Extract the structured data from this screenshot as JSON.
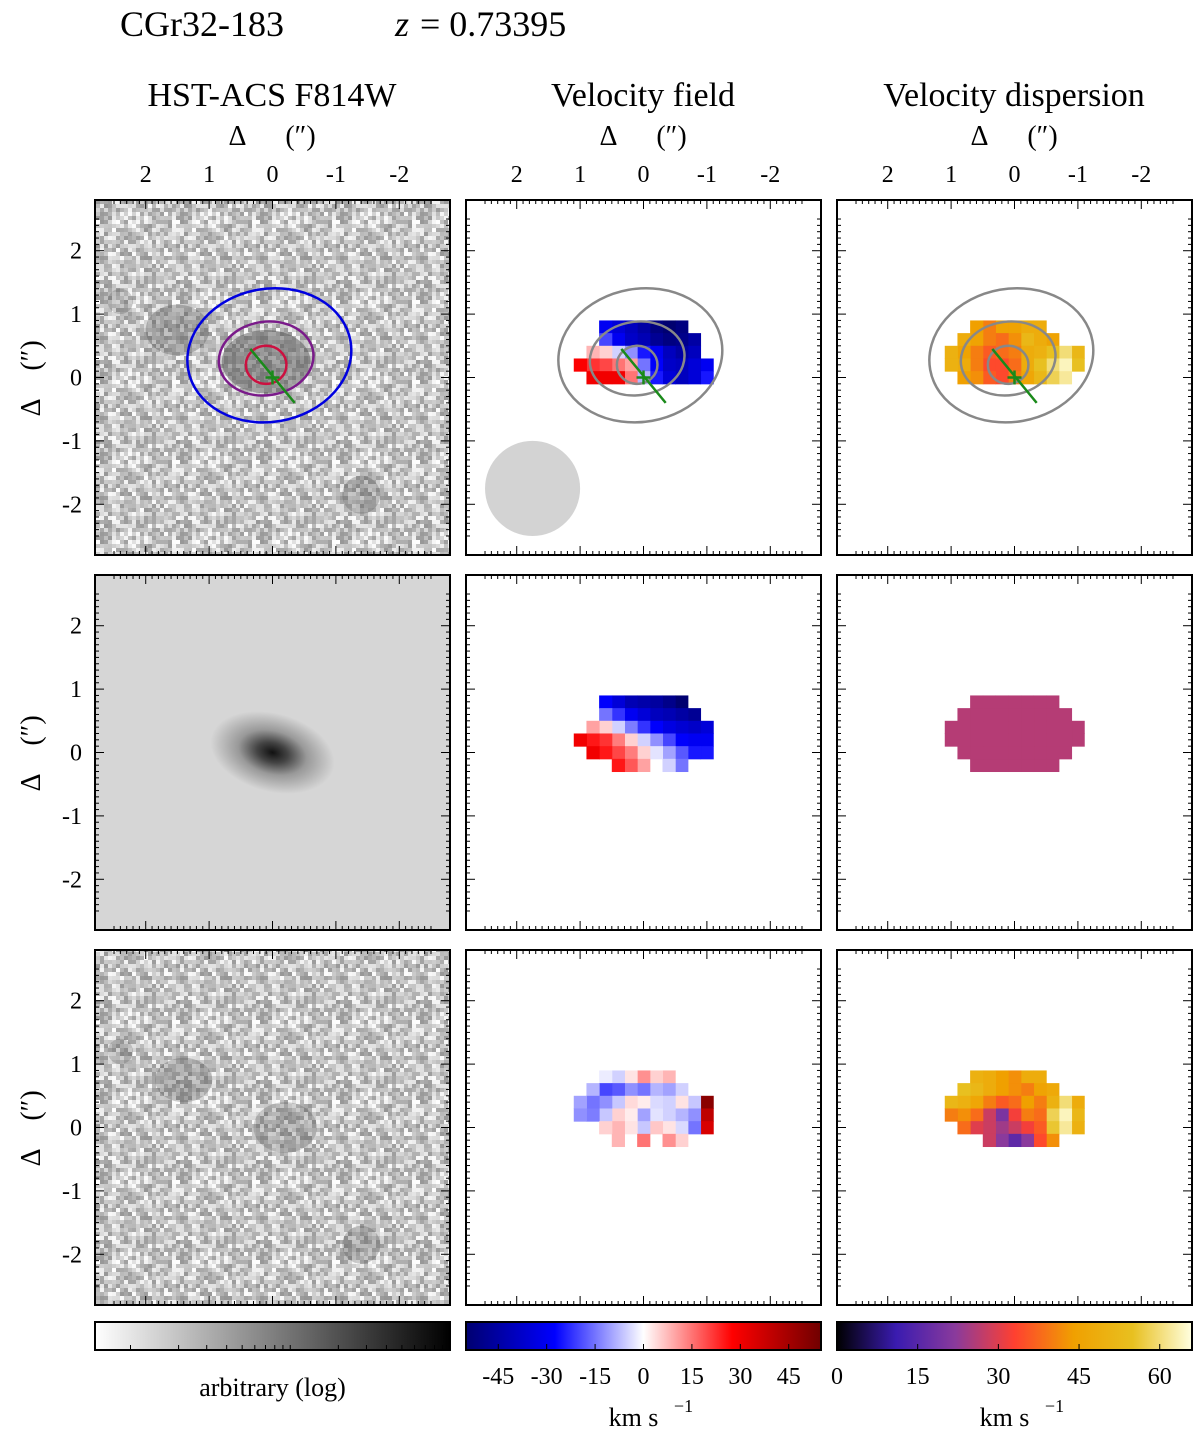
{
  "header": {
    "object_id": "CGr32-183",
    "redshift_var": "z",
    "redshift_eq": "= 0.73395"
  },
  "columns": [
    {
      "title": "HST-ACS F814W"
    },
    {
      "title": "Velocity field"
    },
    {
      "title": "Velocity dispersion"
    }
  ],
  "axes": {
    "label_delta": "Δ",
    "label_unit": "(″)",
    "x_ticks": [
      "2",
      "1",
      "0",
      "-1",
      "-2"
    ],
    "y_ticks": [
      "2",
      "1",
      "0",
      "-1",
      "-2"
    ],
    "range": [
      -2.8,
      2.8
    ]
  },
  "colorbars": [
    {
      "name": "image",
      "label": "arbitrary (log)",
      "ticks": [],
      "colors": [
        "#ffffff",
        "#000000"
      ]
    },
    {
      "name": "velocity",
      "label": "km s",
      "label_sup": "−1",
      "ticks": [
        "-45",
        "-30",
        "-15",
        "0",
        "15",
        "30",
        "45"
      ],
      "range": [
        -55,
        55
      ],
      "colors": [
        "#000070",
        "#0000ff",
        "#ffffff",
        "#ff0000",
        "#700000"
      ]
    },
    {
      "name": "dispersion",
      "label": "km s",
      "label_sup": "−1",
      "ticks": [
        "0",
        "15",
        "30",
        "45",
        "60"
      ],
      "range": [
        0,
        66
      ],
      "colors": [
        "#000000",
        "#3a1bb0",
        "#8a3a9c",
        "#ff4030",
        "#f0a000",
        "#e8c020",
        "#ffffe0"
      ]
    }
  ],
  "chart_data": [
    {
      "type": "heatmap",
      "title": "Velocity field",
      "rows": [
        "observed",
        "model",
        "residual"
      ],
      "unit": "km s−1",
      "pixel_size_arcsec": 0.2,
      "observed_pixels": [
        [
          -0.6,
          0.8,
          -52
        ],
        [
          -0.4,
          0.8,
          -55
        ],
        [
          -0.2,
          0.8,
          -52
        ],
        [
          0.0,
          0.8,
          -45
        ],
        [
          0.2,
          0.8,
          -40
        ],
        [
          0.4,
          0.8,
          -35
        ],
        [
          0.6,
          0.8,
          -30
        ],
        [
          -0.8,
          0.6,
          -45
        ],
        [
          -0.6,
          0.6,
          -50
        ],
        [
          -0.4,
          0.6,
          -52
        ],
        [
          -0.2,
          0.6,
          -48
        ],
        [
          0.0,
          0.6,
          -42
        ],
        [
          0.2,
          0.6,
          -38
        ],
        [
          0.4,
          0.6,
          -30
        ],
        [
          0.6,
          0.6,
          -20
        ],
        [
          -0.8,
          0.4,
          -40
        ],
        [
          -0.6,
          0.4,
          -45
        ],
        [
          -0.4,
          0.4,
          -40
        ],
        [
          -0.2,
          0.4,
          -30
        ],
        [
          0.0,
          0.4,
          -25
        ],
        [
          0.2,
          0.4,
          -12
        ],
        [
          0.4,
          0.4,
          -5
        ],
        [
          0.6,
          0.4,
          5
        ],
        [
          0.8,
          0.4,
          8
        ],
        [
          -1.0,
          0.2,
          -30
        ],
        [
          -0.8,
          0.2,
          -35
        ],
        [
          -0.6,
          0.2,
          -40
        ],
        [
          -0.4,
          0.2,
          -38
        ],
        [
          -0.2,
          0.2,
          -28
        ],
        [
          0.0,
          0.2,
          -15
        ],
        [
          0.2,
          0.2,
          10
        ],
        [
          0.4,
          0.2,
          15
        ],
        [
          0.6,
          0.2,
          20
        ],
        [
          0.8,
          0.2,
          22
        ],
        [
          1.0,
          0.2,
          28
        ],
        [
          -1.0,
          0.0,
          -25
        ],
        [
          -0.8,
          0.0,
          -35
        ],
        [
          -0.6,
          0.0,
          -40
        ],
        [
          -0.4,
          0.0,
          -35
        ],
        [
          -0.2,
          0.0,
          -25
        ],
        [
          0.0,
          0.0,
          -8
        ],
        [
          0.2,
          0.0,
          15
        ],
        [
          0.4,
          0.0,
          30
        ],
        [
          0.6,
          0.0,
          30
        ],
        [
          0.8,
          0.0,
          30
        ]
      ],
      "model_pixels": [
        [
          -0.6,
          0.8,
          -55
        ],
        [
          -0.4,
          0.8,
          -50
        ],
        [
          -0.2,
          0.8,
          -46
        ],
        [
          0.0,
          0.8,
          -44
        ],
        [
          0.2,
          0.8,
          -42
        ],
        [
          0.4,
          0.8,
          -35
        ],
        [
          0.6,
          0.8,
          -28
        ],
        [
          -0.8,
          0.6,
          -48
        ],
        [
          -0.6,
          0.6,
          -45
        ],
        [
          -0.4,
          0.6,
          -42
        ],
        [
          -0.2,
          0.6,
          -40
        ],
        [
          0.0,
          0.6,
          -35
        ],
        [
          0.2,
          0.6,
          -30
        ],
        [
          0.4,
          0.6,
          -22
        ],
        [
          0.6,
          0.6,
          -15
        ],
        [
          -1.0,
          0.4,
          -35
        ],
        [
          -0.8,
          0.4,
          -38
        ],
        [
          -0.6,
          0.4,
          -36
        ],
        [
          -0.4,
          0.4,
          -33
        ],
        [
          -0.2,
          0.4,
          -28
        ],
        [
          0.0,
          0.4,
          -22
        ],
        [
          0.2,
          0.4,
          -14
        ],
        [
          0.4,
          0.4,
          -5
        ],
        [
          0.6,
          0.4,
          5
        ],
        [
          0.8,
          0.4,
          10
        ],
        [
          -1.0,
          0.2,
          -30
        ],
        [
          -0.8,
          0.2,
          -30
        ],
        [
          -0.6,
          0.2,
          -28
        ],
        [
          -0.4,
          0.2,
          -20
        ],
        [
          -0.2,
          0.2,
          -12
        ],
        [
          0.0,
          0.2,
          -5
        ],
        [
          0.2,
          0.2,
          5
        ],
        [
          0.4,
          0.2,
          14
        ],
        [
          0.6,
          0.2,
          22
        ],
        [
          0.8,
          0.2,
          25
        ],
        [
          1.0,
          0.2,
          30
        ],
        [
          -1.0,
          0.0,
          -25
        ],
        [
          -0.8,
          0.0,
          -25
        ],
        [
          -0.6,
          0.0,
          -18
        ],
        [
          -0.4,
          0.0,
          -10
        ],
        [
          -0.2,
          0.0,
          -3
        ],
        [
          0.0,
          0.0,
          5
        ],
        [
          0.2,
          0.0,
          14
        ],
        [
          0.4,
          0.0,
          20
        ],
        [
          0.6,
          0.0,
          25
        ],
        [
          0.8,
          0.0,
          30
        ],
        [
          -0.6,
          -0.2,
          -15
        ],
        [
          -0.4,
          -0.2,
          -5
        ],
        [
          0.0,
          -0.2,
          10
        ],
        [
          0.2,
          -0.2,
          18
        ],
        [
          0.4,
          -0.2,
          25
        ]
      ],
      "residual_pixels": [
        [
          -0.4,
          0.8,
          8
        ],
        [
          -0.2,
          0.8,
          5
        ],
        [
          0.0,
          0.8,
          12
        ],
        [
          0.2,
          0.8,
          3
        ],
        [
          0.4,
          0.8,
          -5
        ],
        [
          0.6,
          0.8,
          -2
        ],
        [
          -0.6,
          0.6,
          -5
        ],
        [
          -0.4,
          0.6,
          -10
        ],
        [
          -0.2,
          0.6,
          -8
        ],
        [
          0.0,
          0.6,
          -15
        ],
        [
          0.2,
          0.6,
          -12
        ],
        [
          0.4,
          0.6,
          -18
        ],
        [
          0.6,
          0.6,
          -20
        ],
        [
          0.8,
          0.6,
          -8
        ],
        [
          -1.0,
          0.4,
          50
        ],
        [
          -0.8,
          0.4,
          -6
        ],
        [
          -0.6,
          0.4,
          3
        ],
        [
          -0.4,
          0.4,
          -5
        ],
        [
          -0.2,
          0.4,
          -4
        ],
        [
          0.0,
          0.4,
          2
        ],
        [
          0.2,
          0.4,
          4
        ],
        [
          0.4,
          0.4,
          -6
        ],
        [
          0.6,
          0.4,
          -12
        ],
        [
          0.8,
          0.4,
          -15
        ],
        [
          1.0,
          0.4,
          -10
        ],
        [
          -1.0,
          0.2,
          40
        ],
        [
          -0.8,
          0.2,
          -12
        ],
        [
          -0.6,
          0.2,
          -8
        ],
        [
          -0.4,
          0.2,
          -5
        ],
        [
          -0.2,
          0.2,
          -3
        ],
        [
          0.0,
          0.2,
          -10
        ],
        [
          0.2,
          0.2,
          2
        ],
        [
          0.4,
          0.2,
          5
        ],
        [
          0.6,
          0.2,
          -6
        ],
        [
          0.8,
          0.2,
          -14
        ],
        [
          1.0,
          0.2,
          -12
        ],
        [
          -1.0,
          0.0,
          35
        ],
        [
          -0.8,
          0.0,
          -15
        ],
        [
          -0.6,
          0.0,
          -4
        ],
        [
          -0.4,
          0.0,
          3
        ],
        [
          -0.2,
          0.0,
          6
        ],
        [
          0.0,
          0.0,
          -6
        ],
        [
          0.2,
          0.0,
          3
        ],
        [
          0.4,
          0.0,
          8
        ],
        [
          0.6,
          0.0,
          5
        ],
        [
          -0.6,
          -0.2,
          5
        ],
        [
          -0.4,
          -0.2,
          12
        ],
        [
          0.0,
          -0.2,
          15
        ],
        [
          0.4,
          -0.2,
          8
        ]
      ]
    },
    {
      "type": "heatmap",
      "title": "Velocity dispersion",
      "rows": [
        "observed",
        "model",
        "residual"
      ],
      "unit": "km s−1",
      "pixel_size_arcsec": 0.2,
      "observed_pixels": [
        [
          -0.4,
          0.8,
          48
        ],
        [
          -0.2,
          0.8,
          48
        ],
        [
          0.0,
          0.8,
          45
        ],
        [
          0.2,
          0.8,
          45
        ],
        [
          0.4,
          0.8,
          40
        ],
        [
          0.6,
          0.8,
          44
        ],
        [
          -0.6,
          0.6,
          45
        ],
        [
          -0.4,
          0.6,
          48
        ],
        [
          -0.2,
          0.6,
          52
        ],
        [
          0.0,
          0.6,
          42
        ],
        [
          0.2,
          0.6,
          38
        ],
        [
          0.4,
          0.6,
          40
        ],
        [
          0.6,
          0.6,
          45
        ],
        [
          0.8,
          0.6,
          48
        ],
        [
          -1.0,
          0.4,
          52
        ],
        [
          -0.8,
          0.4,
          60
        ],
        [
          -0.6,
          0.4,
          55
        ],
        [
          -0.4,
          0.4,
          50
        ],
        [
          -0.2,
          0.4,
          48
        ],
        [
          0.0,
          0.4,
          40
        ],
        [
          0.2,
          0.4,
          38
        ],
        [
          0.4,
          0.4,
          36
        ],
        [
          0.6,
          0.4,
          40
        ],
        [
          0.8,
          0.4,
          45
        ],
        [
          1.0,
          0.4,
          50
        ],
        [
          -1.0,
          0.2,
          55
        ],
        [
          -0.8,
          0.2,
          64
        ],
        [
          -0.6,
          0.2,
          60
        ],
        [
          -0.4,
          0.2,
          55
        ],
        [
          -0.2,
          0.2,
          48
        ],
        [
          0.0,
          0.2,
          38
        ],
        [
          0.2,
          0.2,
          34
        ],
        [
          0.4,
          0.2,
          34
        ],
        [
          0.6,
          0.2,
          40
        ],
        [
          0.8,
          0.2,
          48
        ],
        [
          1.0,
          0.2,
          50
        ],
        [
          -0.8,
          0.0,
          62
        ],
        [
          -0.6,
          0.0,
          58
        ],
        [
          -0.4,
          0.0,
          52
        ],
        [
          -0.2,
          0.0,
          46
        ],
        [
          0.0,
          0.0,
          40
        ],
        [
          0.2,
          0.0,
          34
        ],
        [
          0.4,
          0.0,
          36
        ],
        [
          0.6,
          0.0,
          42
        ],
        [
          0.8,
          0.0,
          44
        ]
      ],
      "model_uniform_value": 26,
      "residual_pixels": [
        [
          -0.4,
          0.8,
          48
        ],
        [
          -0.2,
          0.8,
          48
        ],
        [
          0.0,
          0.8,
          42
        ],
        [
          0.2,
          0.8,
          44
        ],
        [
          0.4,
          0.8,
          48
        ],
        [
          0.6,
          0.8,
          50
        ],
        [
          -0.6,
          0.6,
          47
        ],
        [
          -0.4,
          0.6,
          45
        ],
        [
          -0.2,
          0.6,
          40
        ],
        [
          0.0,
          0.6,
          42
        ],
        [
          0.2,
          0.6,
          44
        ],
        [
          0.4,
          0.6,
          48
        ],
        [
          0.6,
          0.6,
          52
        ],
        [
          0.8,
          0.6,
          55
        ],
        [
          -1.0,
          0.4,
          48
        ],
        [
          -0.8,
          0.4,
          60
        ],
        [
          -0.6,
          0.4,
          50
        ],
        [
          -0.4,
          0.4,
          40
        ],
        [
          -0.2,
          0.4,
          44
        ],
        [
          0.0,
          0.4,
          38
        ],
        [
          0.2,
          0.4,
          36
        ],
        [
          0.4,
          0.4,
          40
        ],
        [
          0.6,
          0.4,
          46
        ],
        [
          0.8,
          0.4,
          50
        ],
        [
          1.0,
          0.4,
          52
        ],
        [
          -1.0,
          0.2,
          52
        ],
        [
          -0.8,
          0.2,
          64
        ],
        [
          -0.6,
          0.2,
          58
        ],
        [
          -0.4,
          0.2,
          38
        ],
        [
          -0.2,
          0.2,
          40
        ],
        [
          0.0,
          0.2,
          32
        ],
        [
          0.2,
          0.2,
          20
        ],
        [
          0.4,
          0.2,
          28
        ],
        [
          0.6,
          0.2,
          38
        ],
        [
          0.8,
          0.2,
          42
        ],
        [
          1.0,
          0.2,
          40
        ],
        [
          -1.0,
          0.0,
          50
        ],
        [
          -0.8,
          0.0,
          62
        ],
        [
          -0.6,
          0.0,
          56
        ],
        [
          -0.4,
          0.0,
          36
        ],
        [
          -0.2,
          0.0,
          32
        ],
        [
          0.0,
          0.0,
          28
        ],
        [
          0.2,
          0.0,
          24
        ],
        [
          0.4,
          0.0,
          28
        ],
        [
          0.6,
          0.0,
          30
        ],
        [
          0.8,
          0.0,
          38
        ],
        [
          -0.6,
          -0.2,
          42
        ],
        [
          -0.4,
          -0.2,
          34
        ],
        [
          -0.2,
          -0.2,
          22
        ],
        [
          0.0,
          -0.2,
          16
        ],
        [
          0.2,
          -0.2,
          22
        ],
        [
          0.4,
          -0.2,
          28
        ]
      ]
    }
  ]
}
